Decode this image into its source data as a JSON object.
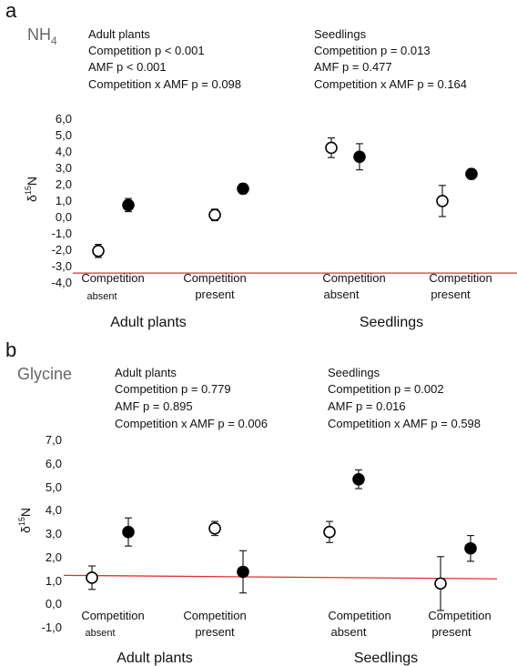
{
  "panels": [
    {
      "letter": "a",
      "analyte_main": "NH",
      "analyte_sub": "4",
      "stats_adult": [
        "Adult plants",
        "Competition  p < 0.001",
        "AMF  p <  0.001",
        "Competition x AMF p =  0.098"
      ],
      "stats_seed": [
        "Seedlings",
        "Competition   p = 0.013",
        "AMF  p = 0.477",
        "Competition x AMF p =  0.164"
      ],
      "ylabel_main": "δ",
      "ylabel_sup": "15",
      "ylabel_tail": "N",
      "yticks": [
        "6,0",
        "5,0",
        "4,0",
        "3,0",
        "2,0",
        "1,0",
        "0,0",
        "-1,0",
        "-2,0",
        "-3,0",
        "-4,0"
      ],
      "group_labels": [
        {
          "line1": "Competition",
          "line2": "absent"
        },
        {
          "line1": "Competition",
          "line2": "present"
        },
        {
          "line1": "Competition",
          "line2": "absent"
        },
        {
          "line1": "Competition",
          "line2": "present"
        }
      ],
      "section_labels": [
        "Adult plants",
        "Seedlings"
      ]
    },
    {
      "letter": "b",
      "analyte_main": "Glycine",
      "analyte_sub": "",
      "stats_adult": [
        "Adult plants",
        "Competition   p = 0.779",
        "AMF  p = 0.895",
        "Competition x AMF p =  0.006"
      ],
      "stats_seed": [
        "Seedlings",
        "Competition   p = 0.002",
        "AMF  p = 0.016",
        "Competition x AMF p = 0.598"
      ],
      "ylabel_main": "δ",
      "ylabel_sup": "15",
      "ylabel_tail": "N",
      "yticks": [
        "7,0",
        "6,0",
        "5,0",
        "4,0",
        "3,0",
        "2,0",
        "1,0",
        "0,0",
        "-1,0"
      ],
      "group_labels": [
        {
          "line1": "Competition",
          "line2": "absent"
        },
        {
          "line1": "Competition",
          "line2": "present"
        },
        {
          "line1": "Competition",
          "line2": "absent"
        },
        {
          "line1": "Competition",
          "line2": "present"
        }
      ],
      "section_labels": [
        "Adult plants",
        "Seedlings"
      ]
    }
  ],
  "chart_data": [
    {
      "type": "scatter",
      "title": "NH4",
      "ylabel": "δ15N",
      "ylim": [
        -4,
        6
      ],
      "grid": false,
      "categories": [
        "Adult plants – Competition absent",
        "Adult plants – Competition present",
        "Seedlings – Competition absent",
        "Seedlings – Competition present"
      ],
      "series": [
        {
          "marker": "open-circle",
          "values": [
            -2.1,
            0.1,
            4.2,
            0.95
          ],
          "error": [
            0.4,
            0.35,
            0.6,
            0.95
          ]
        },
        {
          "marker": "filled-circle",
          "values": [
            0.7,
            1.7,
            3.65,
            2.6
          ],
          "error": [
            0.4,
            0.3,
            0.8,
            0.3
          ]
        }
      ],
      "reference_line": {
        "y": -3.45,
        "color": "#e03030"
      }
    },
    {
      "type": "scatter",
      "title": "Glycine",
      "ylabel": "δ15N",
      "ylim": [
        -1,
        7
      ],
      "grid": false,
      "categories": [
        "Adult plants – Competition absent",
        "Adult plants – Competition present",
        "Seedlings – Competition absent",
        "Seedlings – Competition present"
      ],
      "series": [
        {
          "marker": "open-circle",
          "values": [
            1.1,
            3.2,
            3.05,
            0.85
          ],
          "error": [
            0.5,
            0.3,
            0.45,
            1.15
          ]
        },
        {
          "marker": "filled-circle",
          "values": [
            3.05,
            1.35,
            5.3,
            2.35
          ],
          "error": [
            0.6,
            0.9,
            0.4,
            0.55
          ]
        }
      ],
      "reference_line": {
        "y_start": 1.2,
        "y_end": 1.05,
        "color": "#e03030"
      }
    }
  ]
}
